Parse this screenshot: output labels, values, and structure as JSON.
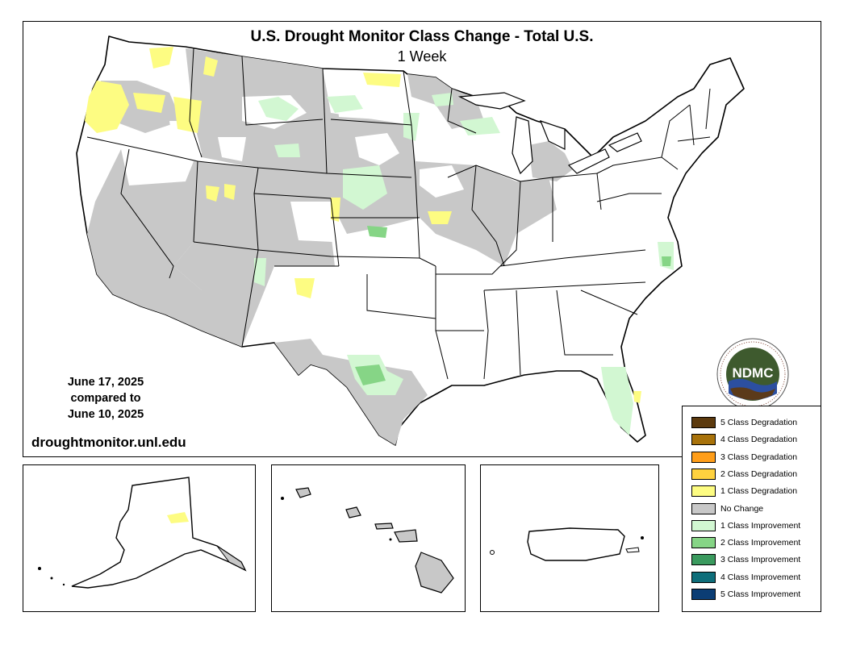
{
  "map": {
    "title": "U.S. Drought Monitor Class Change - Total U.S.",
    "subtitle": "1 Week",
    "date_current": "June 17, 2025",
    "date_compared": "compared to",
    "date_previous": "June 10, 2025",
    "website": "droughtmonitor.unl.edu"
  },
  "logo": {
    "text": "NDMC",
    "ring_text": "NATIONAL DROUGHT MITIGATION CENTER • UNIVERSITY OF NEBRASKA",
    "icon": "ndmc-logo"
  },
  "legend": {
    "items": [
      {
        "label": "5 Class Degradation",
        "color": "#5c3a0e"
      },
      {
        "label": "4 Class Degradation",
        "color": "#a8720a"
      },
      {
        "label": "3 Class Degradation",
        "color": "#ff9e1a"
      },
      {
        "label": "2 Class Degradation",
        "color": "#ffd23f"
      },
      {
        "label": "1 Class Degradation",
        "color": "#fdfc82"
      },
      {
        "label": "No Change",
        "color": "#c8c8c8"
      },
      {
        "label": "1 Class Improvement",
        "color": "#d2f7d2"
      },
      {
        "label": "2 Class Improvement",
        "color": "#86d586"
      },
      {
        "label": "3 Class Improvement",
        "color": "#3a9a5e"
      },
      {
        "label": "4 Class Improvement",
        "color": "#0e6e7a"
      },
      {
        "label": "5 Class Improvement",
        "color": "#0b3d74"
      }
    ]
  },
  "colors": {
    "no_change": "#c8c8c8",
    "degradation_1": "#fdfc82",
    "improvement_1": "#d2f7d2",
    "improvement_2": "#86d586",
    "border": "#000000"
  }
}
